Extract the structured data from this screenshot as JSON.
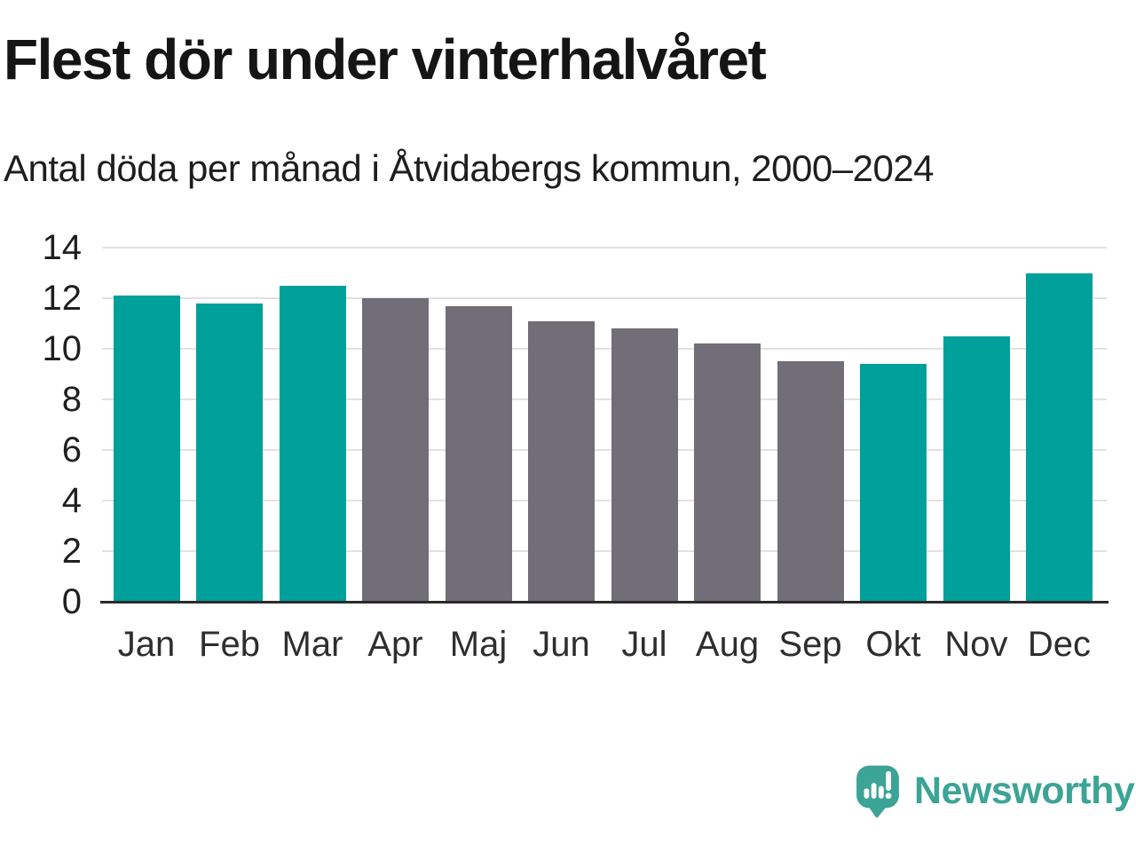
{
  "chart_data": {
    "type": "bar",
    "title": "Flest dör under vinterhalvåret",
    "subtitle": "Antal döda per månad i Åtvidabergs kommun, 2000–2024",
    "categories": [
      "Jan",
      "Feb",
      "Mar",
      "Apr",
      "Maj",
      "Jun",
      "Jul",
      "Aug",
      "Sep",
      "Okt",
      "Nov",
      "Dec"
    ],
    "values": [
      12.1,
      11.8,
      12.5,
      12.0,
      11.7,
      11.1,
      10.8,
      10.2,
      9.5,
      9.4,
      10.5,
      13.0
    ],
    "bar_colors": [
      "#00a09a",
      "#00a09a",
      "#00a09a",
      "#716e78",
      "#716e78",
      "#716e78",
      "#716e78",
      "#716e78",
      "#716e78",
      "#00a09a",
      "#00a09a",
      "#00a09a"
    ],
    "xlabel": "",
    "ylabel": "",
    "ylim": [
      0,
      14
    ],
    "yticks": [
      0,
      2,
      4,
      6,
      8,
      10,
      12,
      14
    ],
    "grid": "horizontal",
    "legend": "none",
    "colors": {
      "highlight_teal": "#00a09a",
      "neutral_gray": "#716e78",
      "gridline": "#e2e2e2",
      "axis_line": "#2b2b2b",
      "title_text": "#151515",
      "tick_text": "#1f1f1f"
    }
  },
  "branding": {
    "logo_text": "Newsworthy",
    "logo_color": "#3ba496",
    "logo_icon": "speech-bubble-bar-chart-exclamation-icon"
  }
}
